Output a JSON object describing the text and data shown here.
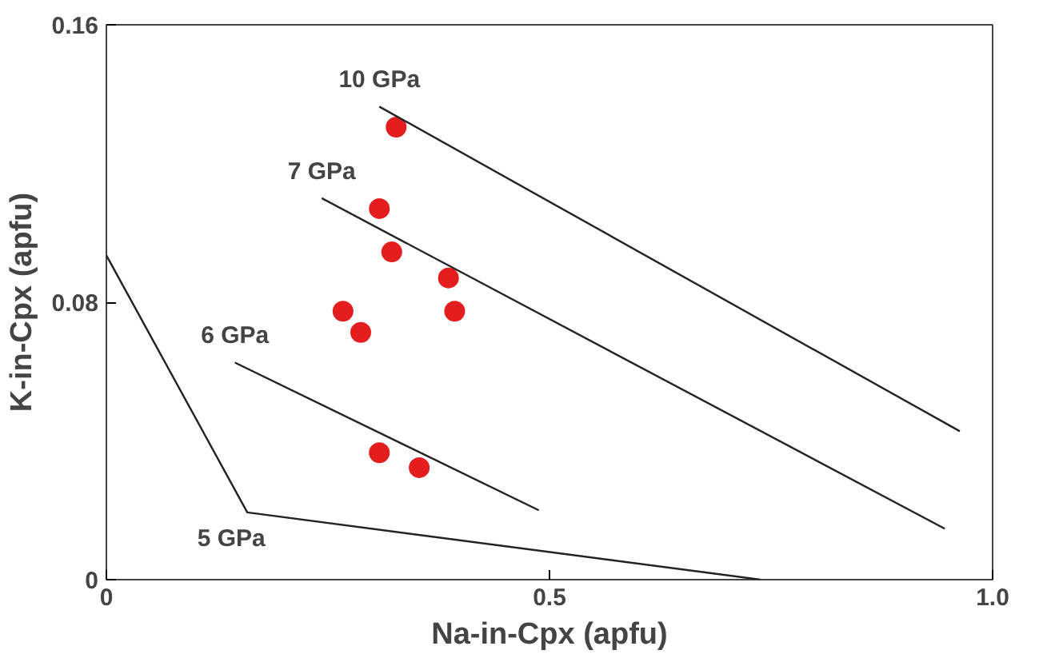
{
  "chart_data": {
    "type": "scatter",
    "xlabel": "Na-in-Cpx (apfu)",
    "ylabel": "K-in-Cpx (apfu)",
    "xlim": [
      0,
      1
    ],
    "ylim": [
      0,
      0.16
    ],
    "xticks": [
      0,
      0.5,
      {
        "value": 1,
        "label": "1.0"
      }
    ],
    "yticks": [
      0,
      0.08,
      0.16
    ],
    "grid": false,
    "series": [
      {
        "color": "#e41e1e",
        "marker": "circle",
        "x": [
          0.327,
          0.308,
          0.322,
          0.386,
          0.393,
          0.267,
          0.287,
          0.308,
          0.353
        ],
        "values": [
          0.1305,
          0.107,
          0.0945,
          0.087,
          0.0774,
          0.0774,
          0.0713,
          0.0366,
          0.0323
        ]
      },
      {
        "type": "line",
        "name": "10 GPa",
        "color": "#222222",
        "x": [
          0.308,
          0.963
        ],
        "values": [
          0.1364,
          0.0428
        ]
      },
      {
        "type": "line",
        "name": "7 GPa",
        "color": "#222222",
        "x": [
          0.243,
          0.946
        ],
        "values": [
          0.11,
          0.0147
        ]
      },
      {
        "type": "line",
        "name": "6 GPa",
        "color": "#222222",
        "x": [
          0.145,
          0.488
        ],
        "values": [
          0.0626,
          0.02
        ]
      },
      {
        "type": "line",
        "name": "5 GPa",
        "color": "#222222",
        "x": [
          0,
          0.159,
          0.738
        ],
        "values": [
          0.0935,
          0.0194,
          0
        ]
      }
    ]
  }
}
